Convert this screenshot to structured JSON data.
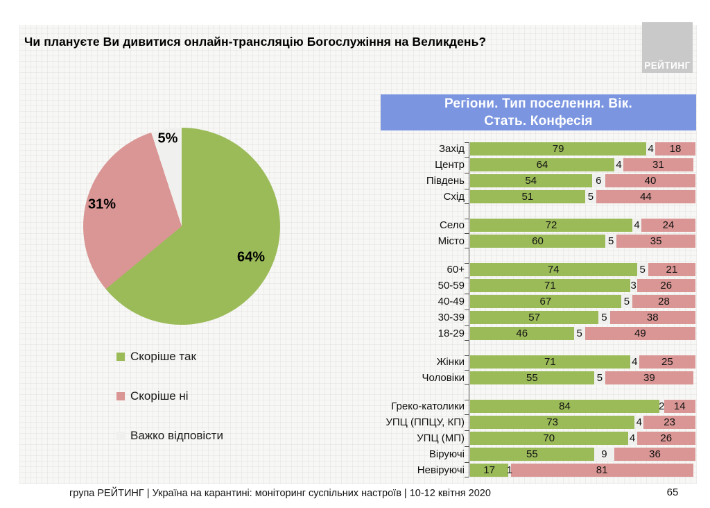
{
  "page": {
    "title": "Чи плануєте Ви дивитися онлайн-трансляцію Богослужіння на Великдень?",
    "logo_text": "РЕЙТИНГ",
    "footer": "група РЕЙТИНГ | Україна на карантині: моніторинг суспільних настроїв | 10-12 квітня 2020",
    "page_number": "65"
  },
  "colors": {
    "yes": "#9bbb59",
    "no": "#d99694",
    "hard": "#f0f0ee",
    "header_bg": "#7b95e0",
    "logo_bg": "#c9c9c9"
  },
  "bar_header": {
    "line1": "Регіони. Тип поселення. Вік.",
    "line2": "Стать. Конфесія"
  },
  "legend": {
    "items": [
      {
        "label": "Скоріше так",
        "color_key": "yes"
      },
      {
        "label": "Скоріше ні",
        "color_key": "no"
      },
      {
        "label": "Важко відповісти",
        "color_key": "hard"
      }
    ]
  },
  "chart_data": [
    {
      "type": "pie",
      "title": "Чи плануєте Ви дивитися онлайн-трансляцію Богослужіння на Великдень?",
      "labels": [
        "Скоріше так",
        "Скоріше ні",
        "Важко відповісти"
      ],
      "values": [
        64,
        31,
        5
      ],
      "unit": "%",
      "colors_order": [
        "yes",
        "no",
        "hard"
      ],
      "start_angle": "12 o'clock, clockwise",
      "legend_position": "below-left"
    },
    {
      "type": "bar",
      "subtype": "horizontal-stacked-100",
      "title": "Регіони. Тип поселення. Вік. Стать. Конфесія",
      "stack_labels": [
        "Скоріше так",
        "Важко відповісти",
        "Скоріше ні"
      ],
      "stack_color_keys": [
        "yes",
        "hard",
        "no"
      ],
      "xlim": [
        0,
        100
      ],
      "groups": [
        {
          "name": "region",
          "rows": [
            {
              "label": "Захід",
              "values": [
                79,
                4,
                18
              ]
            },
            {
              "label": "Центр",
              "values": [
                64,
                4,
                31
              ]
            },
            {
              "label": "Південь",
              "values": [
                54,
                6,
                40
              ]
            },
            {
              "label": "Схід",
              "values": [
                51,
                5,
                44
              ]
            }
          ]
        },
        {
          "name": "settlement",
          "rows": [
            {
              "label": "Село",
              "values": [
                72,
                4,
                24
              ]
            },
            {
              "label": "Місто",
              "values": [
                60,
                5,
                35
              ]
            }
          ]
        },
        {
          "name": "age",
          "rows": [
            {
              "label": "60+",
              "values": [
                74,
                5,
                21
              ]
            },
            {
              "label": "50-59",
              "values": [
                71,
                3,
                26
              ]
            },
            {
              "label": "40-49",
              "values": [
                67,
                5,
                28
              ]
            },
            {
              "label": "30-39",
              "values": [
                57,
                5,
                38
              ]
            },
            {
              "label": "18-29",
              "values": [
                46,
                5,
                49
              ]
            }
          ]
        },
        {
          "name": "gender",
          "rows": [
            {
              "label": "Жінки",
              "values": [
                71,
                4,
                25
              ]
            },
            {
              "label": "Чоловіки",
              "values": [
                55,
                5,
                39
              ]
            }
          ]
        },
        {
          "name": "confession",
          "rows": [
            {
              "label": "Греко-католики",
              "values": [
                84,
                2,
                14
              ]
            },
            {
              "label": "УПЦ (ППЦУ, КП)",
              "values": [
                73,
                4,
                23
              ]
            },
            {
              "label": "УПЦ (МП)",
              "values": [
                70,
                4,
                26
              ]
            },
            {
              "label": "Віруючі",
              "values": [
                55,
                9,
                36
              ]
            },
            {
              "label": "Невіруючі",
              "values": [
                17,
                1,
                81
              ]
            }
          ]
        }
      ]
    }
  ]
}
